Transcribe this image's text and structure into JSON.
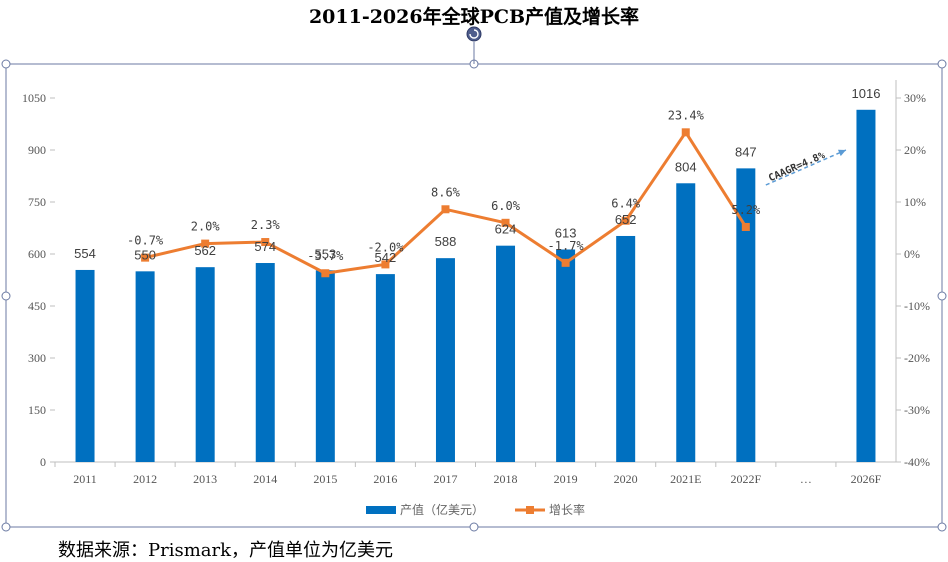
{
  "title": "2011-2026年全球PCB产值及增长率",
  "source_note": "数据来源：Prismark，产值单位为亿美元",
  "chart_data": {
    "type": "bar",
    "title": "2011-2026年全球PCB产值及增长率",
    "categories": [
      "2011",
      "2012",
      "2013",
      "2014",
      "2015",
      "2016",
      "2017",
      "2018",
      "2019",
      "2020",
      "2021E",
      "2022F",
      "…",
      "2026F"
    ],
    "series": [
      {
        "name": "产值（亿美元）",
        "type": "bar",
        "axis": "left",
        "color": "#0070C0",
        "values": [
          554,
          550,
          562,
          574,
          553,
          542,
          588,
          624,
          613,
          652,
          804,
          847,
          null,
          1016
        ],
        "labels": [
          "554",
          "550",
          "562",
          "574",
          "553",
          "542",
          "588",
          "624",
          "613",
          "652",
          "804",
          "847",
          "",
          "1016"
        ]
      },
      {
        "name": "增长率",
        "type": "line",
        "axis": "right",
        "color": "#ED7D31",
        "values": [
          null,
          -0.7,
          2.0,
          2.3,
          -3.7,
          -2.0,
          8.6,
          6.0,
          -1.7,
          6.4,
          23.4,
          5.2,
          null,
          null
        ],
        "labels": [
          "",
          "-0.7%",
          "2.0%",
          "2.3%",
          "-3.7%",
          "-2.0%",
          "8.6%",
          "6.0%",
          "-1.7%",
          "6.4%",
          "23.4%",
          "5.2%",
          "",
          ""
        ]
      }
    ],
    "y_left": {
      "min": 0,
      "max": 1050,
      "ticks": [
        0,
        150,
        300,
        450,
        600,
        750,
        900,
        1050
      ]
    },
    "y_right": {
      "min": -40,
      "max": 30,
      "ticks": [
        -40,
        -30,
        -20,
        -10,
        0,
        10,
        20,
        30
      ],
      "tick_labels": [
        "-40%",
        "-30%",
        "-20%",
        "-10%",
        "0%",
        "10%",
        "20%",
        "30%"
      ]
    },
    "annotation": {
      "text": "CAAGR=4.8%",
      "from_category": "2022F",
      "to_category": "2026F"
    },
    "legend": {
      "position": "bottom"
    },
    "grid": false
  }
}
